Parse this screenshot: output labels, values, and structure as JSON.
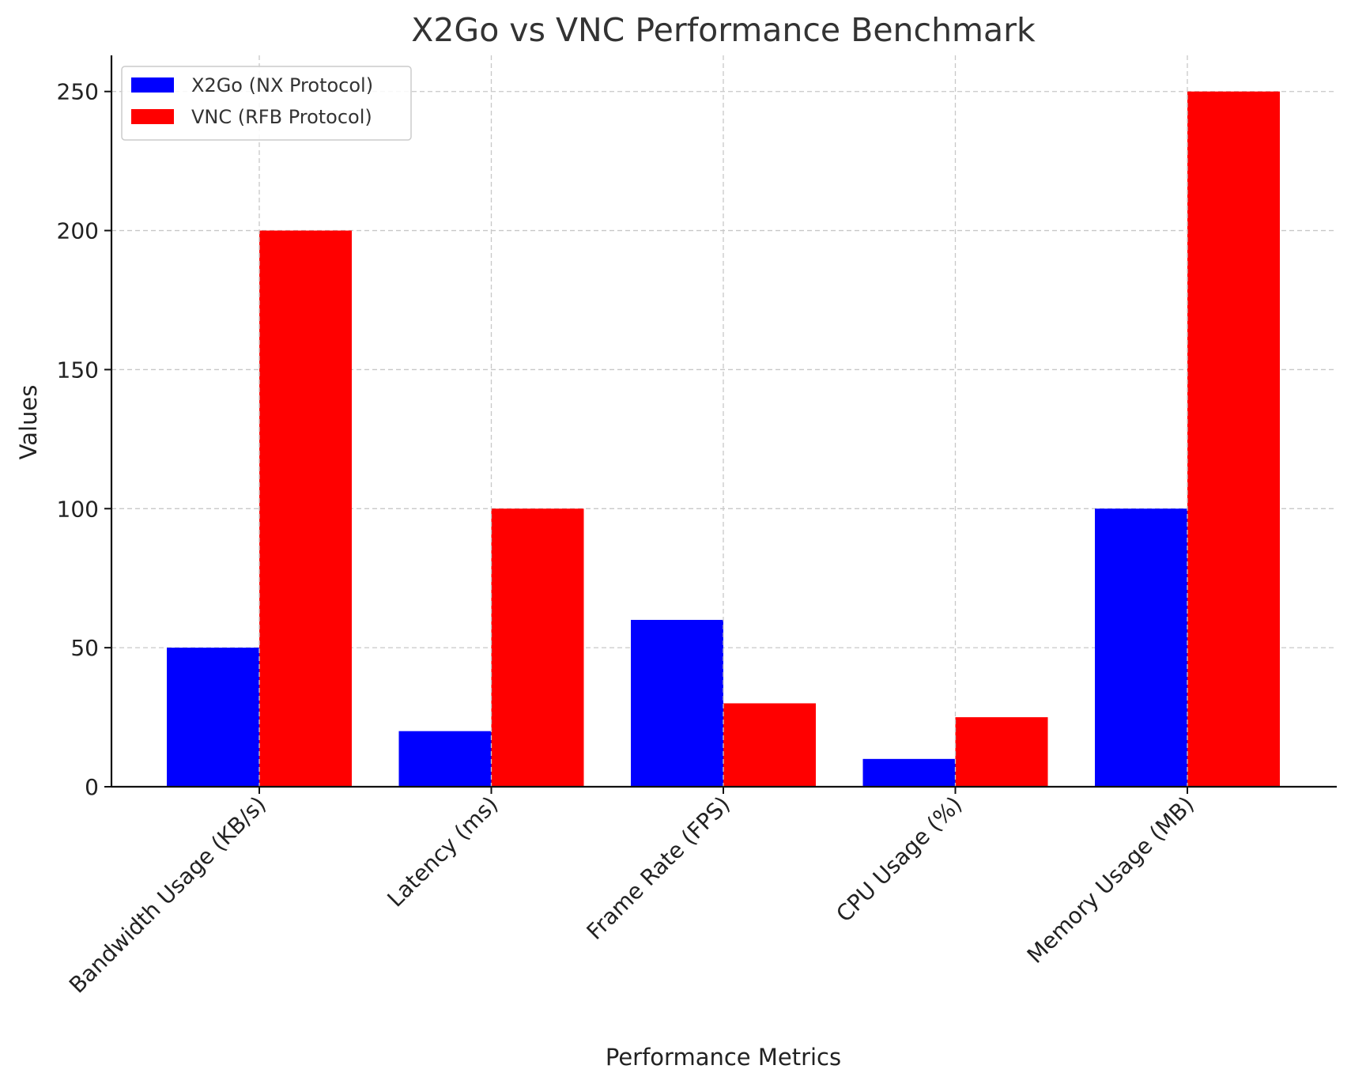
{
  "chart_data": {
    "type": "bar",
    "title": "X2Go vs VNC Performance Benchmark",
    "xlabel": "Performance Metrics",
    "ylabel": "Values",
    "categories": [
      "Bandwidth Usage (KB/s)",
      "Latency (ms)",
      "Frame Rate (FPS)",
      "CPU Usage (%)",
      "Memory Usage (MB)"
    ],
    "series": [
      {
        "name": "X2Go (NX Protocol)",
        "color": "#0000ff",
        "values": [
          50,
          20,
          60,
          10,
          100
        ]
      },
      {
        "name": "VNC (RFB Protocol)",
        "color": "#ff0000",
        "values": [
          200,
          100,
          30,
          25,
          250
        ]
      }
    ],
    "ylim": [
      0,
      263
    ],
    "yticks": [
      0,
      50,
      100,
      150,
      200,
      250
    ],
    "grid": true,
    "legend_position": "top-left"
  }
}
